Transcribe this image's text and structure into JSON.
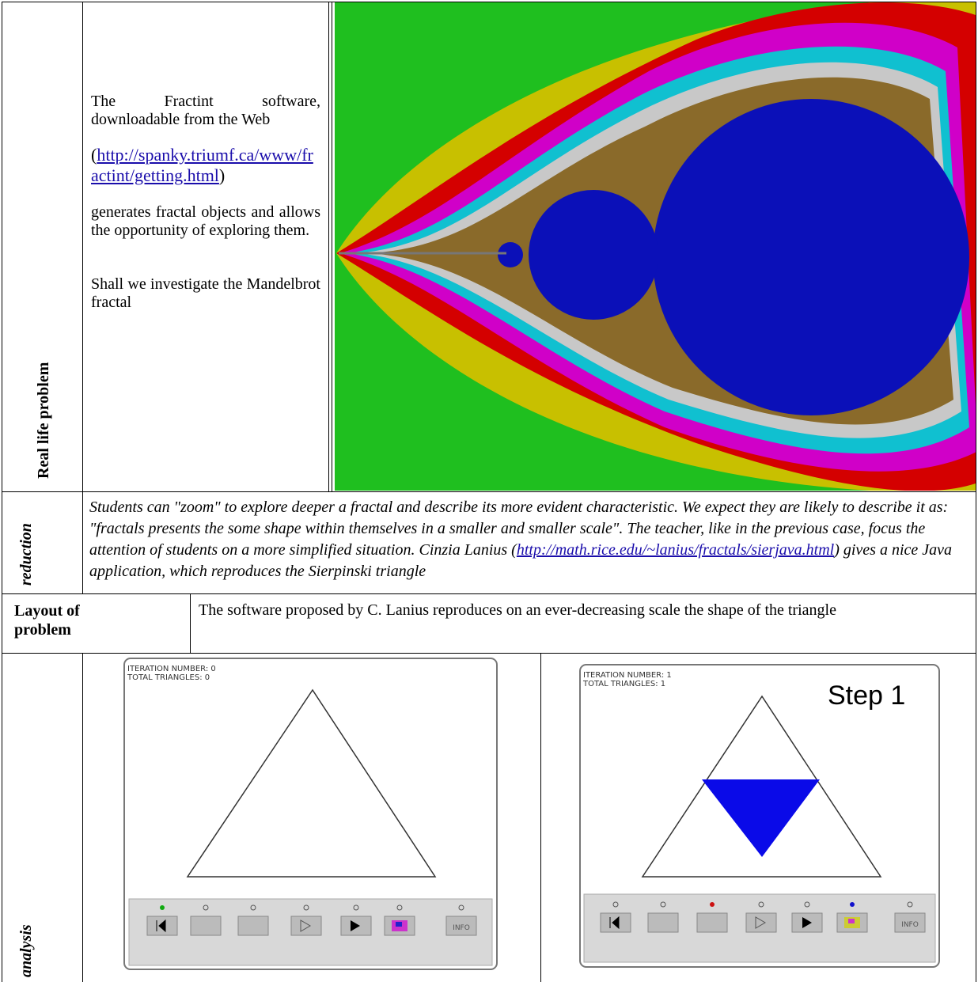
{
  "section_labels": [
    "Real life problem",
    "reduction",
    "Layout of problem",
    "analysis"
  ],
  "intro": {
    "text1": "The Fractint software, downloadable from the Web",
    "link_prefix": "(",
    "link": "http://spanky.triumf.ca/www/fractint/getting.html",
    "link_suffix": ")",
    "text2": "generates fractal objects and allows the opportunity of exploring them.",
    "text3": "Shall we investigate the Mandelbrot fractal"
  },
  "reduction": {
    "text_before": "Students can \"zoom\" to explore deeper a fractal and describe its more evident characteristic. We expect they are likely to describe it as: \"fractals presents the some shape within  themselves in a smaller and smaller scale\". The teacher, like in the previous case, focus the attention of students on a more simplified  situation. Cinzia  Lanius (",
    "link": "http://math.rice.edu/~lanius/fractals/sierjava.html",
    "text_after": ") gives a nice Java application, which reproduces the Sierpinski triangle"
  },
  "layout_text": "The software proposed by C. Lanius reproduces on an ever-decreasing scale  the shape of the triangle",
  "panels": [
    {
      "iteration": "ITERATION NUMBER: 0",
      "total": "TOTAL TRIANGLES: 0",
      "button": "INFO"
    },
    {
      "iteration": "ITERATION NUMBER: 1",
      "total": "TOTAL TRIANGLES: 1",
      "button": "INFO",
      "caption": "Step 1"
    }
  ]
}
